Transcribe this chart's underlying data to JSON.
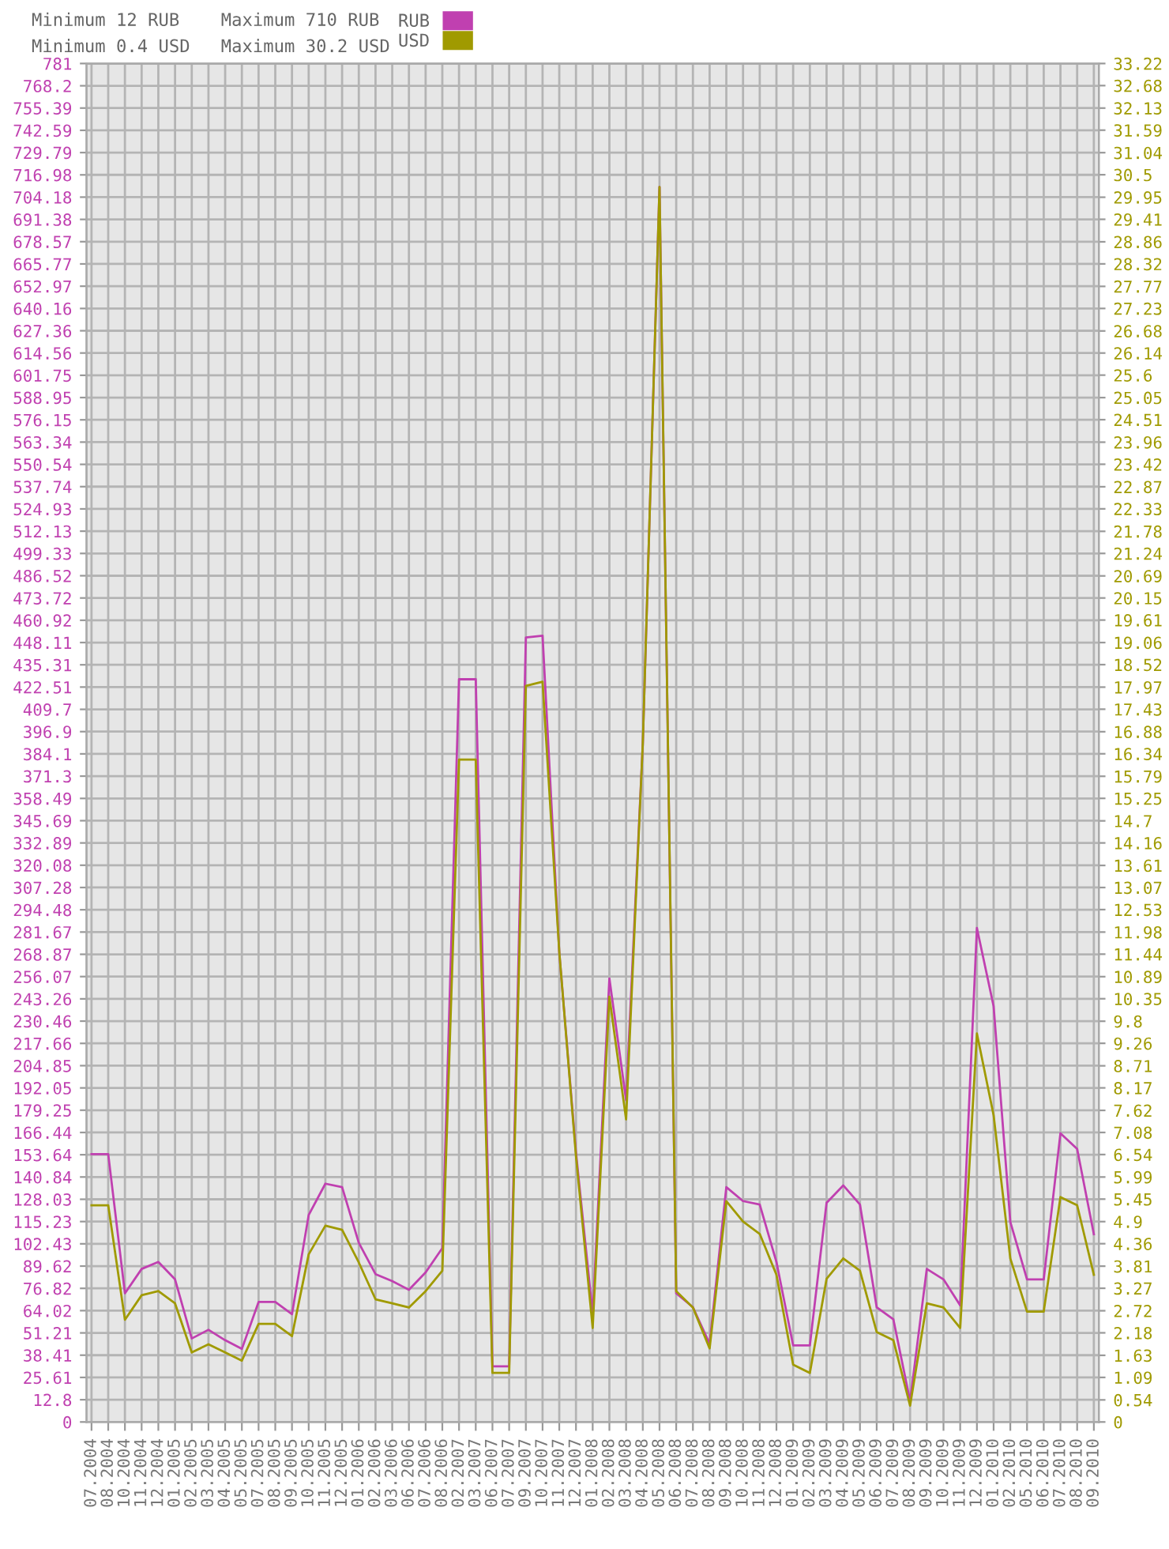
{
  "chart_data": {
    "type": "line",
    "annotations": [
      "Minimum 12 RUB",
      "Minimum 0.4 USD",
      "Maximum 710 RUB",
      "Maximum 30.2 USD"
    ],
    "categories": [
      "07.2004",
      "08.2004",
      "10.2004",
      "11.2004",
      "12.2004",
      "01.2005",
      "02.2005",
      "03.2005",
      "04.2005",
      "05.2005",
      "07.2005",
      "08.2005",
      "09.2005",
      "10.2005",
      "11.2005",
      "12.2005",
      "01.2006",
      "02.2006",
      "03.2006",
      "06.2006",
      "07.2006",
      "08.2006",
      "02.2007",
      "03.2007",
      "06.2007",
      "07.2007",
      "09.2007",
      "10.2007",
      "11.2007",
      "12.2007",
      "01.2008",
      "02.2008",
      "03.2008",
      "04.2008",
      "05.2008",
      "06.2008",
      "07.2008",
      "08.2008",
      "09.2008",
      "10.2008",
      "11.2008",
      "12.2008",
      "01.2009",
      "02.2009",
      "03.2009",
      "04.2009",
      "05.2009",
      "06.2009",
      "07.2009",
      "08.2009",
      "09.2009",
      "10.2009",
      "11.2009",
      "12.2009",
      "01.2010",
      "02.2010",
      "05.2010",
      "06.2010",
      "07.2010",
      "08.2010",
      "09.2010"
    ],
    "series": [
      {
        "name": "RUB",
        "color": "#c040b0",
        "values": [
          154,
          154,
          74,
          88,
          92,
          82,
          48,
          53,
          47,
          42,
          69,
          69,
          62,
          119,
          137,
          135,
          103,
          85,
          81,
          76,
          86,
          100,
          427,
          427,
          32,
          32,
          451,
          452,
          270,
          155,
          62,
          255,
          185,
          390,
          710,
          74,
          66,
          45,
          135,
          127,
          125,
          92,
          44,
          44,
          126,
          136,
          125,
          66,
          59,
          12,
          88,
          82,
          67,
          284,
          239,
          115,
          82,
          82,
          166,
          157,
          108
        ]
      },
      {
        "name": "USD",
        "color": "#a09a00",
        "axis": "y2",
        "values": [
          5.3,
          5.3,
          2.5,
          3.1,
          3.2,
          2.9,
          1.7,
          1.9,
          1.7,
          1.5,
          2.4,
          2.4,
          2.1,
          4.1,
          4.8,
          4.7,
          3.9,
          3.0,
          2.9,
          2.8,
          3.2,
          3.7,
          16.2,
          16.2,
          1.2,
          1.2,
          18.0,
          18.1,
          11.5,
          6.5,
          2.3,
          10.4,
          7.4,
          16.6,
          30.2,
          3.2,
          2.8,
          1.8,
          5.4,
          4.9,
          4.6,
          3.6,
          1.4,
          1.2,
          3.5,
          4.0,
          3.7,
          2.2,
          2.0,
          0.4,
          2.9,
          2.8,
          2.3,
          9.5,
          7.5,
          4.0,
          2.7,
          2.7,
          5.5,
          5.3,
          3.6
        ]
      }
    ],
    "ylim": [
      0,
      781
    ],
    "yticks": [
      0,
      12.8,
      25.61,
      38.41,
      51.21,
      64.02,
      76.82,
      89.62,
      102.43,
      115.23,
      128.03,
      140.84,
      153.64,
      166.44,
      179.25,
      192.05,
      204.85,
      217.66,
      230.46,
      243.26,
      256.07,
      268.87,
      281.67,
      294.48,
      307.28,
      320.08,
      332.89,
      345.69,
      358.49,
      371.3,
      384.1,
      396.9,
      409.7,
      422.51,
      435.31,
      448.11,
      460.92,
      473.72,
      486.52,
      499.33,
      512.13,
      524.93,
      537.74,
      550.54,
      563.34,
      576.15,
      588.95,
      601.75,
      614.56,
      627.36,
      640.16,
      652.97,
      665.77,
      678.57,
      691.38,
      704.18,
      716.98,
      729.79,
      742.59,
      755.39,
      768.2,
      781
    ],
    "y2lim": [
      0,
      33.22
    ],
    "y2ticks": [
      0,
      0.54,
      1.09,
      1.63,
      2.18,
      2.72,
      3.27,
      3.81,
      4.36,
      4.9,
      5.45,
      5.99,
      6.54,
      7.08,
      7.62,
      8.17,
      8.71,
      9.26,
      9.8,
      10.35,
      10.89,
      11.44,
      11.98,
      12.53,
      13.07,
      13.61,
      14.16,
      14.7,
      15.25,
      15.79,
      16.34,
      16.88,
      17.43,
      17.97,
      18.52,
      19.06,
      19.61,
      20.15,
      20.69,
      21.24,
      21.78,
      22.33,
      22.87,
      23.42,
      23.96,
      24.51,
      25.05,
      25.6,
      26.14,
      26.68,
      27.23,
      27.77,
      28.32,
      28.86,
      29.41,
      29.95,
      30.5,
      31.04,
      31.59,
      32.13,
      32.68,
      33.22
    ],
    "grid": true,
    "legend": "top",
    "marker": "none",
    "line_style": "solid"
  }
}
